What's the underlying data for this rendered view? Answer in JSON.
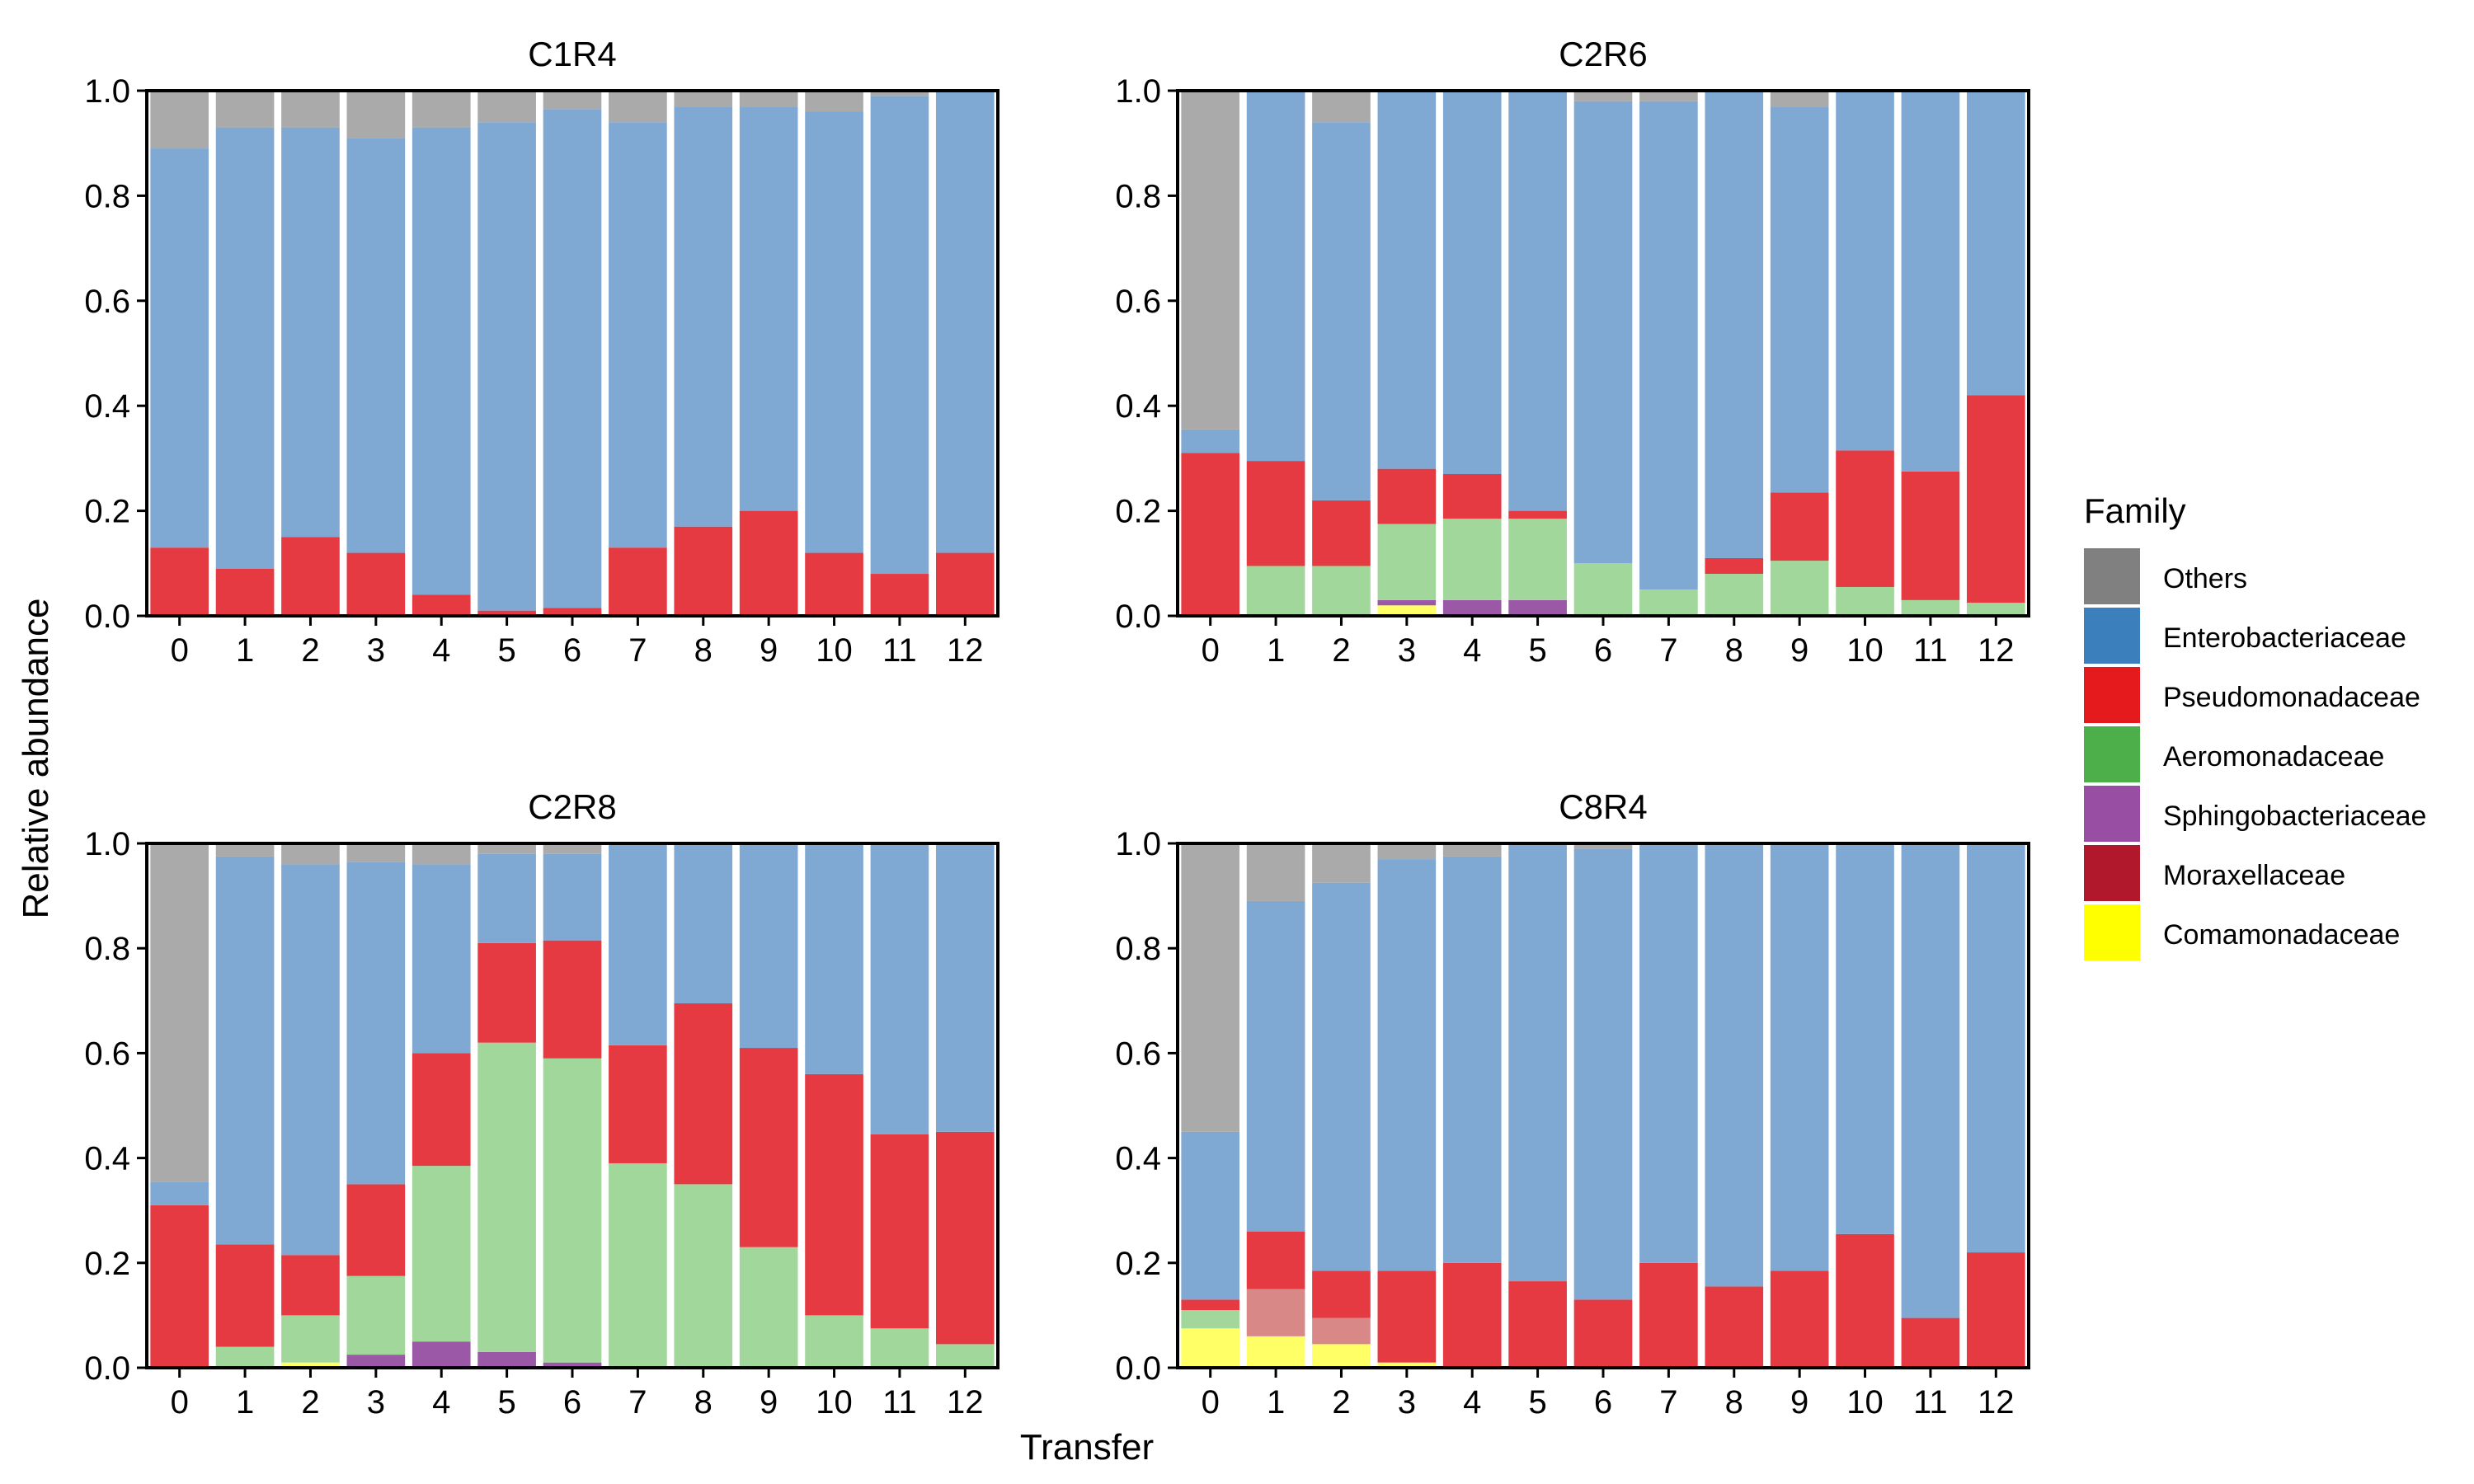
{
  "figure": {
    "ylabel": "Relative abundance",
    "xlabel": "Transfer"
  },
  "legend": {
    "title": "Family",
    "items": [
      {
        "name": "Others",
        "color": "#808080"
      },
      {
        "name": "Enterobacteriaceae",
        "color": "#3b7fbd"
      },
      {
        "name": "Pseudomonadaceae",
        "color": "#e41a1c"
      },
      {
        "name": "Aeromonadaceae",
        "color": "#4daf4a"
      },
      {
        "name": "Sphingobacteriaceae",
        "color": "#984ea3"
      },
      {
        "name": "Moraxellaceae",
        "color": "#b2182b"
      },
      {
        "name": "Comamonadaceae",
        "color": "#ffff00"
      }
    ]
  },
  "chart_data": [
    {
      "type": "bar",
      "stacked": true,
      "title": "C1R4",
      "categories": [
        "0",
        "1",
        "2",
        "3",
        "4",
        "5",
        "6",
        "7",
        "8",
        "9",
        "10",
        "11",
        "12"
      ],
      "ylim": [
        0,
        1
      ],
      "yticks": [
        "0.0",
        "0.2",
        "0.4",
        "0.6",
        "0.8",
        "1.0"
      ],
      "series": [
        {
          "name": "Comamonadaceae",
          "values": [
            0,
            0,
            0,
            0,
            0,
            0,
            0,
            0,
            0,
            0,
            0,
            0,
            0
          ]
        },
        {
          "name": "Sphingobacteriaceae",
          "values": [
            0,
            0,
            0,
            0,
            0,
            0,
            0,
            0,
            0,
            0,
            0,
            0,
            0
          ]
        },
        {
          "name": "Aeromonadaceae",
          "values": [
            0,
            0,
            0,
            0,
            0,
            0,
            0,
            0,
            0,
            0,
            0,
            0,
            0
          ]
        },
        {
          "name": "Pseudomonadaceae",
          "values": [
            0.13,
            0.09,
            0.15,
            0.12,
            0.04,
            0.01,
            0.015,
            0.13,
            0.17,
            0.2,
            0.12,
            0.08,
            0.12
          ]
        },
        {
          "name": "Enterobacteriaceae",
          "values": [
            0.76,
            0.84,
            0.78,
            0.79,
            0.89,
            0.93,
            0.95,
            0.81,
            0.8,
            0.77,
            0.84,
            0.91,
            0.88
          ]
        },
        {
          "name": "Others",
          "values": [
            0.11,
            0.07,
            0.07,
            0.09,
            0.07,
            0.06,
            0.035,
            0.06,
            0.03,
            0.03,
            0.04,
            0.01,
            0
          ]
        }
      ]
    },
    {
      "type": "bar",
      "stacked": true,
      "title": "C2R6",
      "categories": [
        "0",
        "1",
        "2",
        "3",
        "4",
        "5",
        "6",
        "7",
        "8",
        "9",
        "10",
        "11",
        "12"
      ],
      "ylim": [
        0,
        1
      ],
      "yticks": [
        "0.0",
        "0.2",
        "0.4",
        "0.6",
        "0.8",
        "1.0"
      ],
      "series": [
        {
          "name": "Comamonadaceae",
          "values": [
            0,
            0,
            0,
            0.02,
            0,
            0,
            0,
            0,
            0,
            0,
            0,
            0,
            0
          ]
        },
        {
          "name": "Sphingobacteriaceae",
          "values": [
            0,
            0,
            0,
            0.01,
            0.03,
            0.03,
            0,
            0,
            0,
            0,
            0,
            0,
            0
          ]
        },
        {
          "name": "Aeromonadaceae",
          "values": [
            0,
            0.095,
            0.095,
            0.145,
            0.155,
            0.155,
            0.1,
            0.05,
            0.08,
            0.105,
            0.055,
            0.03,
            0.025
          ]
        },
        {
          "name": "Pseudomonadaceae",
          "values": [
            0.31,
            0.2,
            0.125,
            0.105,
            0.085,
            0.015,
            0,
            0,
            0.03,
            0.13,
            0.26,
            0.245,
            0.395
          ]
        },
        {
          "name": "Enterobacteriaceae",
          "values": [
            0.045,
            0.705,
            0.72,
            0.72,
            0.73,
            0.8,
            0.88,
            0.93,
            0.89,
            0.735,
            0.685,
            0.725,
            0.58
          ]
        },
        {
          "name": "Others",
          "values": [
            0.645,
            0,
            0.06,
            0,
            0,
            0,
            0.02,
            0.02,
            0,
            0.03,
            0,
            0,
            0
          ]
        }
      ]
    },
    {
      "type": "bar",
      "stacked": true,
      "title": "C2R8",
      "categories": [
        "0",
        "1",
        "2",
        "3",
        "4",
        "5",
        "6",
        "7",
        "8",
        "9",
        "10",
        "11",
        "12"
      ],
      "ylim": [
        0,
        1
      ],
      "yticks": [
        "0.0",
        "0.2",
        "0.4",
        "0.6",
        "0.8",
        "1.0"
      ],
      "series": [
        {
          "name": "Comamonadaceae",
          "values": [
            0,
            0,
            0.01,
            0,
            0,
            0,
            0,
            0,
            0,
            0,
            0,
            0,
            0
          ]
        },
        {
          "name": "Sphingobacteriaceae",
          "values": [
            0,
            0,
            0,
            0.025,
            0.05,
            0.03,
            0.01,
            0,
            0,
            0,
            0,
            0,
            0
          ]
        },
        {
          "name": "Aeromonadaceae",
          "values": [
            0,
            0.04,
            0.09,
            0.15,
            0.335,
            0.59,
            0.58,
            0.39,
            0.35,
            0.23,
            0.1,
            0.075,
            0.045
          ]
        },
        {
          "name": "Pseudomonadaceae",
          "values": [
            0.31,
            0.195,
            0.115,
            0.175,
            0.215,
            0.19,
            0.225,
            0.225,
            0.345,
            0.38,
            0.46,
            0.37,
            0.405
          ]
        },
        {
          "name": "Enterobacteriaceae",
          "values": [
            0.045,
            0.74,
            0.745,
            0.615,
            0.36,
            0.17,
            0.165,
            0.385,
            0.305,
            0.39,
            0.44,
            0.555,
            0.55
          ]
        },
        {
          "name": "Others",
          "values": [
            0.645,
            0.025,
            0.04,
            0.035,
            0.04,
            0.02,
            0.02,
            0,
            0,
            0,
            0,
            0,
            0
          ]
        }
      ]
    },
    {
      "type": "bar",
      "stacked": true,
      "title": "C8R4",
      "categories": [
        "0",
        "1",
        "2",
        "3",
        "4",
        "5",
        "6",
        "7",
        "8",
        "9",
        "10",
        "11",
        "12"
      ],
      "ylim": [
        0,
        1
      ],
      "yticks": [
        "0.0",
        "0.2",
        "0.4",
        "0.6",
        "0.8",
        "1.0"
      ],
      "series": [
        {
          "name": "Comamonadaceae",
          "values": [
            0.075,
            0.06,
            0.045,
            0.01,
            0,
            0,
            0,
            0,
            0,
            0,
            0,
            0,
            0
          ]
        },
        {
          "name": "Sphingobacteriaceae",
          "values": [
            0,
            0,
            0,
            0,
            0,
            0,
            0,
            0,
            0,
            0,
            0,
            0,
            0
          ]
        },
        {
          "name": "Aeromonadaceae",
          "values": [
            0.035,
            0,
            0,
            0,
            0,
            0,
            0,
            0,
            0,
            0,
            0,
            0,
            0
          ]
        },
        {
          "name": "Moraxellaceae",
          "values": [
            0,
            0.09,
            0.05,
            0,
            0,
            0,
            0,
            0,
            0,
            0,
            0,
            0,
            0
          ]
        },
        {
          "name": "Pseudomonadaceae",
          "values": [
            0.02,
            0.11,
            0.09,
            0.175,
            0.2,
            0.165,
            0.13,
            0.2,
            0.155,
            0.185,
            0.255,
            0.095,
            0.22
          ]
        },
        {
          "name": "Enterobacteriaceae",
          "values": [
            0.32,
            0.63,
            0.74,
            0.785,
            0.775,
            0.835,
            0.86,
            0.8,
            0.845,
            0.815,
            0.745,
            0.905,
            0.78
          ]
        },
        {
          "name": "Others",
          "values": [
            0.55,
            0.11,
            0.075,
            0.03,
            0.025,
            0,
            0.01,
            0,
            0,
            0,
            0,
            0,
            0
          ]
        }
      ]
    }
  ]
}
